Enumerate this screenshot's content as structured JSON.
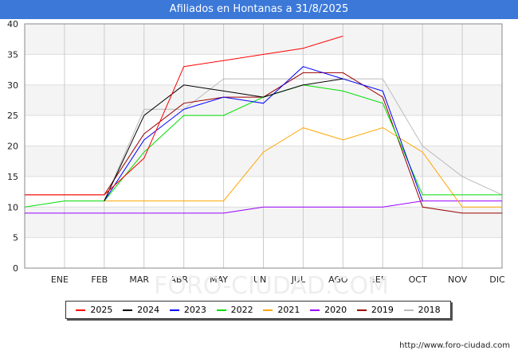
{
  "chart_data": {
    "type": "line",
    "title": "Afiliados en Hontanas a 31/8/2025",
    "categories": [
      "",
      "ENE",
      "FEB",
      "MAR",
      "ABR",
      "MAY",
      "JUN",
      "JUL",
      "AGO",
      "SEP",
      "OCT",
      "NOV",
      "DIC"
    ],
    "ylim": [
      0,
      40
    ],
    "yticks": [
      0,
      5,
      10,
      15,
      20,
      25,
      30,
      35,
      40
    ],
    "grid": true,
    "legend_position": "bottom",
    "watermark": "FORO-CIUDAD.COM",
    "source": "http://www.foro-ciudad.com",
    "series": [
      {
        "name": "2025",
        "color": "#ff0000",
        "values": [
          12,
          12,
          12,
          18,
          33,
          34,
          35,
          36,
          38,
          null,
          null,
          null,
          null
        ]
      },
      {
        "name": "2024",
        "color": "#000000",
        "values": [
          null,
          null,
          11,
          25,
          30,
          29,
          28,
          30,
          31,
          null,
          null,
          null,
          null
        ]
      },
      {
        "name": "2023",
        "color": "#0000ff",
        "values": [
          null,
          null,
          11,
          21,
          26,
          28,
          27,
          33,
          31,
          29,
          11,
          null,
          null
        ]
      },
      {
        "name": "2022",
        "color": "#00dd00",
        "values": [
          10,
          11,
          11,
          19,
          25,
          25,
          28,
          30,
          29,
          27,
          12,
          12,
          12
        ]
      },
      {
        "name": "2021",
        "color": "#ffa500",
        "values": [
          null,
          null,
          11,
          11,
          11,
          11,
          19,
          23,
          21,
          23,
          19,
          10,
          10
        ]
      },
      {
        "name": "2020",
        "color": "#9900ff",
        "values": [
          9,
          9,
          9,
          9,
          9,
          9,
          10,
          10,
          10,
          10,
          11,
          11,
          11
        ]
      },
      {
        "name": "2019",
        "color": "#990000",
        "values": [
          12,
          12,
          12,
          22,
          27,
          28,
          28,
          32,
          32,
          28,
          10,
          9,
          9
        ]
      },
      {
        "name": "2018",
        "color": "#bbbbbb",
        "values": [
          null,
          null,
          11,
          26,
          26,
          31,
          31,
          31,
          31,
          31,
          20,
          15,
          12
        ]
      }
    ]
  }
}
